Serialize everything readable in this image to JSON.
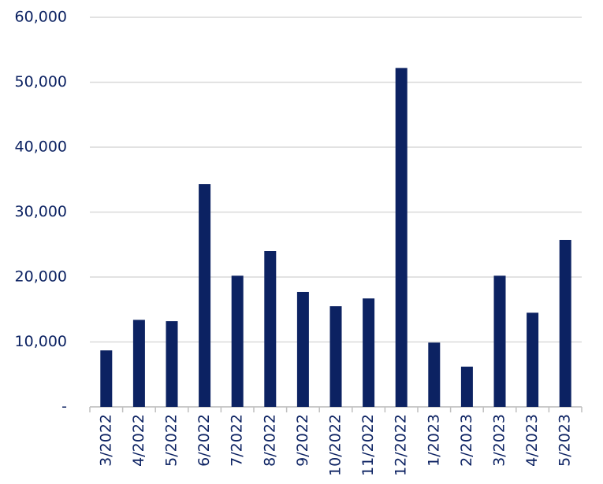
{
  "chart_data": {
    "type": "bar",
    "categories": [
      "3/2022",
      "4/2022",
      "5/2022",
      "6/2022",
      "7/2022",
      "8/2022",
      "9/2022",
      "10/2022",
      "11/2022",
      "12/2022",
      "1/2023",
      "2/2023",
      "3/2023",
      "4/2023",
      "5/2023"
    ],
    "values": [
      8700,
      13400,
      13200,
      34300,
      20200,
      24000,
      17700,
      15500,
      16700,
      52200,
      9900,
      6200,
      20200,
      14500,
      25700
    ],
    "color": "#0c2262",
    "ylim": [
      0,
      60000
    ],
    "yticks": [
      {
        "value": 0,
        "label": "-"
      },
      {
        "value": 10000,
        "label": "10,000"
      },
      {
        "value": 20000,
        "label": "20,000"
      },
      {
        "value": 30000,
        "label": "30,000"
      },
      {
        "value": 40000,
        "label": "40,000"
      },
      {
        "value": 50000,
        "label": "50,000"
      },
      {
        "value": 60000,
        "label": "60,000"
      }
    ],
    "grid": true
  }
}
